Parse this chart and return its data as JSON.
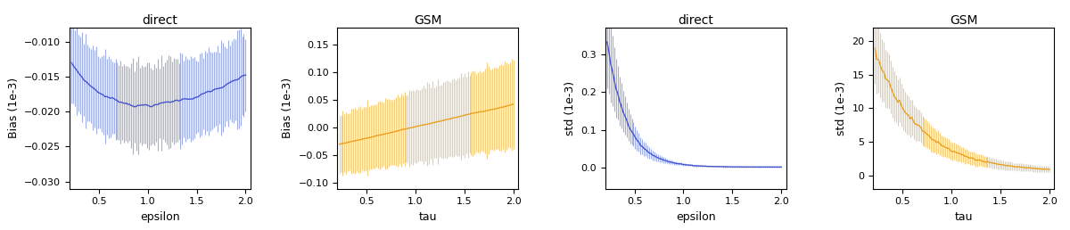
{
  "blue_color": "#4455cc",
  "orange_color": "#e8a020",
  "blue_fill": "#8899dd",
  "orange_fill": "#f0c060",
  "titles": [
    "direct",
    "GSM",
    "direct",
    "GSM"
  ],
  "xlabels": [
    "epsilon",
    "tau",
    "epsilon",
    "tau"
  ],
  "ylabels": [
    "Bias (1e-3)",
    "Bias (1e-3)",
    "std (1e-3)",
    "std (1e-3)"
  ],
  "xlim": [
    0.2,
    2.05
  ],
  "bias_direct_ylim": [
    -0.031,
    -0.008
  ],
  "bias_gsm_ylim": [
    -0.11,
    0.18
  ],
  "std_direct_ylim": [
    -0.055,
    0.37
  ],
  "std_gsm_ylim": [
    -2,
    22
  ],
  "xticks": [
    0.5,
    1.0,
    1.5,
    2.0
  ],
  "n_points": 100,
  "seed": 7
}
